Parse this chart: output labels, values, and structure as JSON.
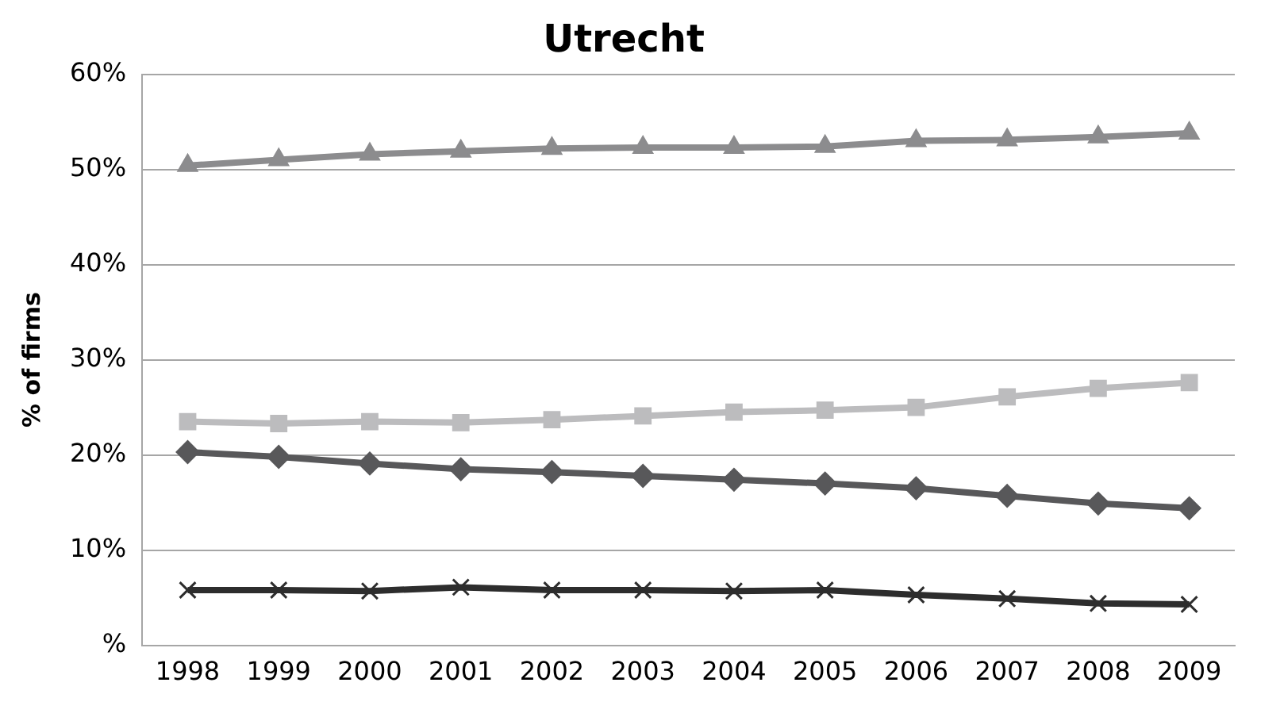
{
  "chart_data": {
    "type": "line",
    "title": "Utrecht",
    "ylabel": "% of firms",
    "categories": [
      "1998",
      "1999",
      "2000",
      "2001",
      "2002",
      "2003",
      "2004",
      "2005",
      "2006",
      "2007",
      "2008",
      "2009"
    ],
    "series": [
      {
        "color": "#8c8c8e",
        "marker": "triangle",
        "values": [
          50.4,
          51.0,
          51.6,
          51.9,
          52.2,
          52.3,
          52.3,
          52.4,
          53.0,
          53.1,
          53.4,
          53.8
        ]
      },
      {
        "color": "#bcbcbe",
        "marker": "square",
        "values": [
          23.5,
          23.3,
          23.5,
          23.4,
          23.7,
          24.1,
          24.5,
          24.7,
          25.0,
          26.1,
          27.0,
          27.6
        ]
      },
      {
        "color": "#58585a",
        "marker": "diamond",
        "values": [
          20.3,
          19.8,
          19.1,
          18.5,
          18.2,
          17.8,
          17.4,
          17.0,
          16.5,
          15.7,
          14.9,
          14.4
        ]
      },
      {
        "color": "#2d2d2d",
        "marker": "cross",
        "values": [
          5.8,
          5.8,
          5.7,
          6.1,
          5.8,
          5.8,
          5.7,
          5.8,
          5.3,
          4.9,
          4.4,
          4.3
        ]
      }
    ],
    "ylim": [
      0,
      60
    ],
    "yticks": [
      {
        "value": 0,
        "label": "%"
      },
      {
        "value": 10,
        "label": "10%"
      },
      {
        "value": 20,
        "label": "20%"
      },
      {
        "value": 30,
        "label": "30%"
      },
      {
        "value": 40,
        "label": "40%"
      },
      {
        "value": 50,
        "label": "50%"
      },
      {
        "value": 60,
        "label": "60%"
      }
    ],
    "grid": "y",
    "legend": false,
    "line_style": "solid"
  }
}
